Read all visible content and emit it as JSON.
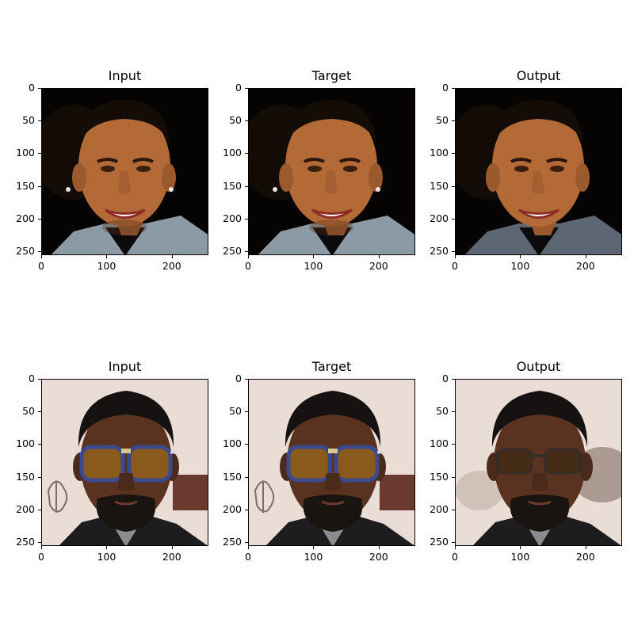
{
  "panels": [
    {
      "title": "Input",
      "row": 0,
      "col": 0,
      "subject": "smiling-man-dark-bg"
    },
    {
      "title": "Target",
      "row": 0,
      "col": 1,
      "subject": "smiling-man-dark-bg"
    },
    {
      "title": "Output",
      "row": 0,
      "col": 2,
      "subject": "smiling-man-dark-bg-generated"
    },
    {
      "title": "Input",
      "row": 1,
      "col": 0,
      "subject": "man-with-blue-sunglasses"
    },
    {
      "title": "Target",
      "row": 1,
      "col": 1,
      "subject": "man-with-blue-sunglasses"
    },
    {
      "title": "Output",
      "row": 1,
      "col": 2,
      "subject": "man-with-dark-glasses-generated"
    }
  ],
  "axes": {
    "y_ticks": [
      "0",
      "50",
      "100",
      "150",
      "200",
      "250"
    ],
    "x_ticks": [
      "0",
      "100",
      "200"
    ]
  },
  "colors": {
    "dark_bg": "#050403",
    "skin_warm": "#b36a36",
    "skin_dark": "#5a3320",
    "light_bg": "#e9ddd6",
    "glasses_frame": "#3b4a8f",
    "lens": "#8a5a1c"
  }
}
